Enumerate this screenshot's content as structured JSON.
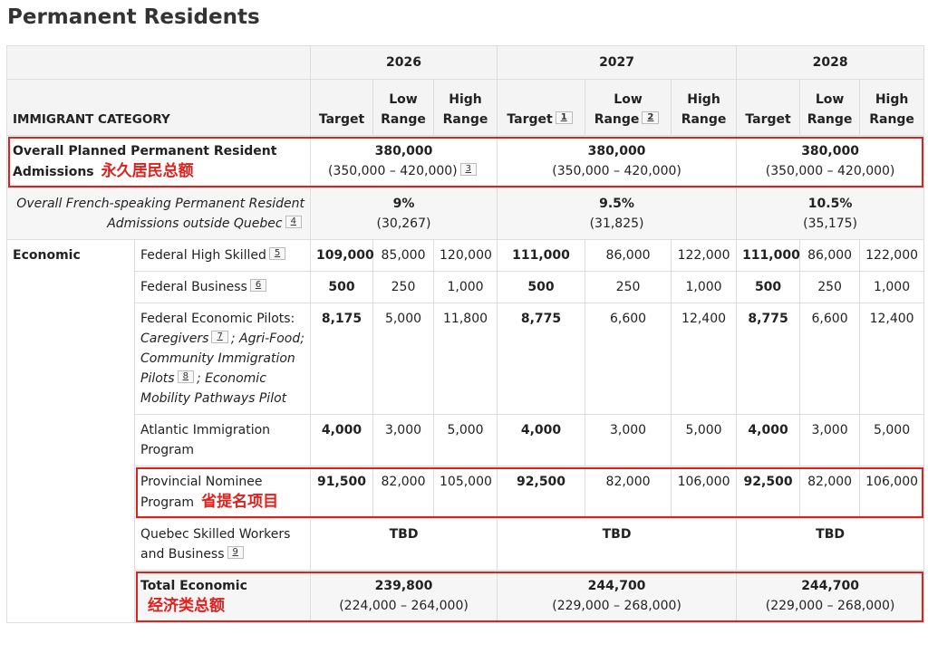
{
  "title": "Permanent Residents",
  "table": {
    "category_header": "IMMIGRANT CATEGORY",
    "year_groups": [
      {
        "year": "2026",
        "columns": [
          {
            "label": "Target"
          },
          {
            "label": "Low Range"
          },
          {
            "label": "High Range"
          }
        ]
      },
      {
        "year": "2027",
        "columns": [
          {
            "label": "Target",
            "note": "1"
          },
          {
            "label": "Low Range",
            "note": "2"
          },
          {
            "label": "High Range"
          }
        ]
      },
      {
        "year": "2028",
        "columns": [
          {
            "label": "Target"
          },
          {
            "label": "Low Range"
          },
          {
            "label": "High Range"
          }
        ]
      }
    ],
    "overall": {
      "label": "Overall Planned Permanent Resident Admissions",
      "annotation": "永久居民总额",
      "cells": [
        {
          "value": "380,000",
          "range": "(350,000 – 420,000)",
          "note": "3"
        },
        {
          "value": "380,000",
          "range": "(350,000 – 420,000)"
        },
        {
          "value": "380,000",
          "range": "(350,000 – 420,000)"
        }
      ]
    },
    "french": {
      "label": "Overall French-speaking Permanent Resident Admissions outside Quebec",
      "note": "4",
      "cells": [
        {
          "value": "9%",
          "range": "(30,267)"
        },
        {
          "value": "9.5%",
          "range": "(31,825)"
        },
        {
          "value": "10.5%",
          "range": "(35,175)"
        }
      ]
    },
    "economic": {
      "label": "Economic",
      "rows": [
        {
          "label": "Federal High Skilled",
          "note": "5",
          "values": [
            [
              "109,000",
              "85,000",
              "120,000"
            ],
            [
              "111,000",
              "86,000",
              "122,000"
            ],
            [
              "111,000",
              "86,000",
              "122,000"
            ]
          ]
        },
        {
          "label": "Federal Business",
          "note": "6",
          "values": [
            [
              "500",
              "250",
              "1,000"
            ],
            [
              "500",
              "250",
              "1,000"
            ],
            [
              "500",
              "250",
              "1,000"
            ]
          ]
        },
        {
          "label_parts": [
            {
              "text": "Federal Economic Pilots:"
            },
            {
              "text": "Caregivers",
              "italic": true
            },
            {
              "note": "7"
            },
            {
              "text": "; Agri-Food; Community Immigration Pilots",
              "italic": true
            },
            {
              "note": "8"
            },
            {
              "text": "; Economic Mobility Pathways Pilot",
              "italic": true
            }
          ],
          "values": [
            [
              "8,175",
              "5,000",
              "11,800"
            ],
            [
              "8,775",
              "6,600",
              "12,400"
            ],
            [
              "8,775",
              "6,600",
              "12,400"
            ]
          ]
        },
        {
          "label": "Atlantic Immigration Program",
          "values": [
            [
              "4,000",
              "3,000",
              "5,000"
            ],
            [
              "4,000",
              "3,000",
              "5,000"
            ],
            [
              "4,000",
              "3,000",
              "5,000"
            ]
          ]
        },
        {
          "label": "Provincial Nominee Program",
          "annotation": "省提名项目",
          "values": [
            [
              "91,500",
              "82,000",
              "105,000"
            ],
            [
              "92,500",
              "82,000",
              "106,000"
            ],
            [
              "92,500",
              "82,000",
              "106,000"
            ]
          ]
        },
        {
          "label": "Quebec Skilled Workers and Business",
          "note": "9",
          "cells": [
            "TBD",
            "TBD",
            "TBD"
          ]
        },
        {
          "label": "Total Economic",
          "annotation": "经济类总额",
          "total": true,
          "totals": [
            {
              "value": "239,800",
              "range": "(224,000 – 264,000)"
            },
            {
              "value": "244,700",
              "range": "(229,000 – 268,000)"
            },
            {
              "value": "244,700",
              "range": "(229,000 – 268,000)"
            }
          ]
        }
      ]
    }
  }
}
